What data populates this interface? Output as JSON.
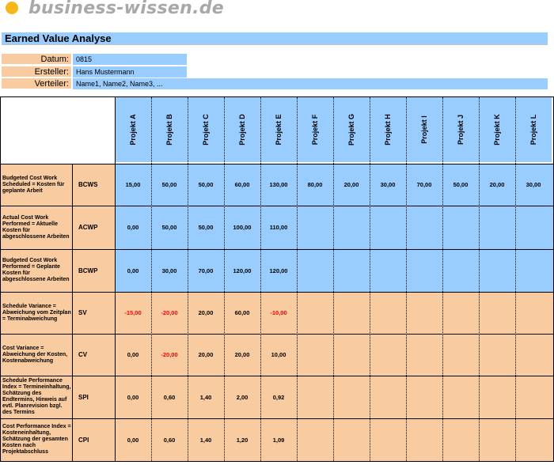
{
  "logo": {
    "text": "business-wissen.de"
  },
  "title": "Earned Value Analyse",
  "meta": [
    {
      "label": "Datum:",
      "value": "0815"
    },
    {
      "label": "Ersteller:",
      "value": "Hans Mustermann"
    },
    {
      "label": "Verteiler:",
      "value": "Name1, Name2, Name3, ..."
    }
  ],
  "projects": [
    "Projekt A",
    "Projekt B",
    "Projekt C",
    "Projekt D",
    "Projekt E",
    "Projekt F",
    "Projekt G",
    "Projekt H",
    "Projekt I",
    "Projekt J",
    "Projekt K",
    "Projekt L"
  ],
  "colors": {
    "blue": "#99ccff",
    "orange": "#f8cba0",
    "negative": "#ff0000",
    "logo_dot": "#f5b818"
  },
  "rows": [
    {
      "label": "Budgeted Cost Work Scheduled = Kosten für geplante Arbeit",
      "abbr": "BCWS",
      "bg": "blue",
      "values": [
        "15,00",
        "50,00",
        "50,00",
        "60,00",
        "130,00",
        "80,00",
        "20,00",
        "30,00",
        "70,00",
        "50,00",
        "20,00",
        "30,00"
      ]
    },
    {
      "label": "Actual Cost Work Performed = Aktuelle Kosten für abgeschlossene Arbeiten",
      "abbr": "ACWP",
      "bg": "blue",
      "values": [
        "0,00",
        "50,00",
        "50,00",
        "100,00",
        "110,00",
        "",
        "",
        "",
        "",
        "",
        "",
        ""
      ]
    },
    {
      "label": "Budgeted Cost Work Performed = Geplante Kosten für abgeschlossene Arbeiten",
      "abbr": "BCWP",
      "bg": "blue",
      "values": [
        "0,00",
        "30,00",
        "70,00",
        "120,00",
        "120,00",
        "",
        "",
        "",
        "",
        "",
        "",
        ""
      ]
    },
    {
      "label": "Schedule Variance = Abweichung vom Zeitplan = Terminabweichung",
      "abbr": "SV",
      "bg": "orange",
      "values": [
        "-15,00",
        "-20,00",
        "20,00",
        "60,00",
        "-10,00",
        "",
        "",
        "",
        "",
        "",
        "",
        ""
      ]
    },
    {
      "label": "Cost Variance = Abweichung der Kosten, Kostenabweichung",
      "abbr": "CV",
      "bg": "orange",
      "values": [
        "0,00",
        "-20,00",
        "20,00",
        "20,00",
        "10,00",
        "",
        "",
        "",
        "",
        "",
        "",
        ""
      ]
    },
    {
      "label": "Schedule Performance Index = Termineinhaltung, Schätzung des Endtermins, Hinweis auf evtl. Planrevision bzgl. des Termins",
      "abbr": "SPI",
      "bg": "orange",
      "values": [
        "0,00",
        "0,60",
        "1,40",
        "2,00",
        "0,92",
        "",
        "",
        "",
        "",
        "",
        "",
        ""
      ]
    },
    {
      "label": "Cost Performance Index = Kosteneinhaltung, Schätzung der gesamten Kosten nach Projektabschluss",
      "abbr": "CPI",
      "bg": "orange",
      "values": [
        "0,00",
        "0,60",
        "1,40",
        "1,20",
        "1,09",
        "",
        "",
        "",
        "",
        "",
        "",
        ""
      ]
    }
  ]
}
